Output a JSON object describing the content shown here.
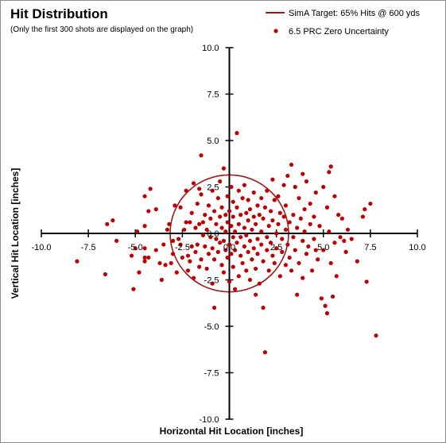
{
  "chart_data": {
    "type": "scatter",
    "title": "Hit Distribution",
    "subtitle": "(Only the first 300 shots are displayed on the graph)",
    "xlabel": "Horizontal Hit Location [inches]",
    "ylabel": "Vertical Hit Location [inches]",
    "xlim": [
      -10,
      10
    ],
    "ylim": [
      -10,
      10
    ],
    "x_ticks": [
      "-10.0",
      "-7.5",
      "-5.0",
      "-2.5",
      "0.0",
      "2.5",
      "5.0",
      "7.5",
      "10.0"
    ],
    "y_ticks": [
      "10.0",
      "7.5",
      "5.0",
      "2.5",
      "0.0",
      "-2.5",
      "-5.0",
      "-7.5",
      "-10.0"
    ],
    "grid": false,
    "legend_position": "top-right",
    "colors": {
      "series": "#c00000",
      "target": "#a01818",
      "axis": "#000000"
    },
    "target": {
      "name": "SimA Target:  65% Hits @ 600 yds",
      "type": "circle",
      "center": [
        0,
        0
      ],
      "radius": 3.15
    },
    "series": [
      {
        "name": "6.5 PRC Zero Uncertainty",
        "marker": "circle",
        "points": [
          [
            -8.1,
            -1.5
          ],
          [
            -6.6,
            -2.2
          ],
          [
            -6.5,
            0.5
          ],
          [
            -6.2,
            0.7
          ],
          [
            -6.0,
            -0.4
          ],
          [
            -5.2,
            -1.2
          ],
          [
            -5.1,
            -3.0
          ],
          [
            -5.0,
            -0.8
          ],
          [
            -4.9,
            0.1
          ],
          [
            -4.8,
            -2.1
          ],
          [
            -4.5,
            -1.3
          ],
          [
            -4.5,
            -1.5
          ],
          [
            -4.5,
            -0.8
          ],
          [
            -4.5,
            0.4
          ],
          [
            -4.5,
            2.0
          ],
          [
            -4.3,
            1.2
          ],
          [
            -4.3,
            -1.3
          ],
          [
            -4.2,
            2.4
          ],
          [
            -3.9,
            1.3
          ],
          [
            -3.9,
            -0.9
          ],
          [
            -3.7,
            -1.6
          ],
          [
            -3.6,
            -2.5
          ],
          [
            -3.5,
            -0.6
          ],
          [
            -3.3,
            0.2
          ],
          [
            -3.2,
            0.5
          ],
          [
            -3.1,
            -1.6
          ],
          [
            -3.0,
            -0.4
          ],
          [
            -2.9,
            1.5
          ],
          [
            -2.8,
            -2.1
          ],
          [
            -2.7,
            -0.3
          ],
          [
            -2.6,
            -0.6
          ],
          [
            -2.5,
            -1.3
          ],
          [
            -2.4,
            0.2
          ],
          [
            -2.3,
            0.6
          ],
          [
            -2.2,
            -1.2
          ],
          [
            -2.1,
            0.6
          ],
          [
            -2.1,
            -1.5
          ],
          [
            -2.0,
            -0.7
          ],
          [
            -2.0,
            1.1
          ],
          [
            -1.9,
            2.7
          ],
          [
            -1.9,
            -2.4
          ],
          [
            -1.8,
            0.3
          ],
          [
            -1.8,
            -1.0
          ],
          [
            -1.7,
            1.6
          ],
          [
            -1.7,
            -0.6
          ],
          [
            -1.6,
            -1.8
          ],
          [
            -1.6,
            0.5
          ],
          [
            -1.5,
            4.2
          ],
          [
            -1.5,
            -1.4
          ],
          [
            -1.5,
            2.1
          ],
          [
            -1.4,
            0.6
          ],
          [
            -1.4,
            -0.1
          ],
          [
            -1.3,
            1.0
          ],
          [
            -1.3,
            -0.7
          ],
          [
            -1.2,
            -1.9
          ],
          [
            -1.2,
            0.2
          ],
          [
            -1.1,
            1.5
          ],
          [
            -1.1,
            -1.1
          ],
          [
            -1.0,
            -0.2
          ],
          [
            -1.0,
            0.8
          ],
          [
            -0.9,
            2.3
          ],
          [
            -0.9,
            -0.8
          ],
          [
            -0.8,
            -1.4
          ],
          [
            -0.8,
            1.2
          ],
          [
            -0.8,
            -4.0
          ],
          [
            -0.7,
            0.5
          ],
          [
            -0.7,
            -0.3
          ],
          [
            -0.6,
            1.9
          ],
          [
            -0.6,
            -1.0
          ],
          [
            -0.5,
            2.8
          ],
          [
            -0.5,
            -0.5
          ],
          [
            -0.5,
            0.9
          ],
          [
            -0.4,
            -1.7
          ],
          [
            -0.4,
            0.3
          ],
          [
            -0.4,
            1.4
          ],
          [
            -0.3,
            -0.4
          ],
          [
            -0.3,
            -2.1
          ],
          [
            -0.3,
            3.5
          ],
          [
            -0.2,
            1.0
          ],
          [
            -0.2,
            -0.9
          ],
          [
            -0.2,
            0.1
          ],
          [
            -0.1,
            -1.3
          ],
          [
            -0.1,
            0.6
          ],
          [
            -0.1,
            2.0
          ],
          [
            0.0,
            -0.6
          ],
          [
            0.0,
            1.2
          ],
          [
            0.0,
            -2.6
          ],
          [
            0.1,
            0.4
          ],
          [
            0.1,
            -1.1
          ],
          [
            0.1,
            2.5
          ],
          [
            0.2,
            -0.2
          ],
          [
            0.2,
            1.7
          ],
          [
            0.2,
            -1.8
          ],
          [
            0.2,
            0.9
          ],
          [
            0.3,
            -3.0
          ],
          [
            0.3,
            0.1
          ],
          [
            0.3,
            -0.9
          ],
          [
            0.4,
            5.4
          ],
          [
            0.4,
            1.4
          ],
          [
            0.4,
            -0.5
          ],
          [
            0.5,
            2.3
          ],
          [
            0.5,
            -2.3
          ],
          [
            0.5,
            0.5
          ],
          [
            0.6,
            -1.2
          ],
          [
            0.6,
            1.0
          ],
          [
            0.6,
            -0.2
          ],
          [
            0.7,
            1.9
          ],
          [
            0.7,
            -1.6
          ],
          [
            0.8,
            0.3
          ],
          [
            0.8,
            -0.7
          ],
          [
            0.8,
            2.6
          ],
          [
            0.9,
            1.1
          ],
          [
            0.9,
            -2.0
          ],
          [
            0.9,
            -0.1
          ],
          [
            1.0,
            0.7
          ],
          [
            1.0,
            -1.0
          ],
          [
            1.0,
            1.8
          ],
          [
            1.1,
            -0.4
          ],
          [
            1.1,
            1.3
          ],
          [
            1.1,
            -2.5
          ],
          [
            1.2,
            0.2
          ],
          [
            1.2,
            -1.4
          ],
          [
            1.3,
            0.9
          ],
          [
            1.3,
            2.2
          ],
          [
            1.3,
            -0.8
          ],
          [
            1.4,
            0.5
          ],
          [
            1.4,
            -1.9
          ],
          [
            1.5,
            1.5
          ],
          [
            1.5,
            -0.3
          ],
          [
            1.5,
            -1.1
          ],
          [
            1.6,
            1.0
          ],
          [
            1.6,
            -2.7
          ],
          [
            1.7,
            0.1
          ],
          [
            1.7,
            1.9
          ],
          [
            1.7,
            -0.6
          ],
          [
            1.8,
            -1.5
          ],
          [
            1.8,
            0.8
          ],
          [
            1.8,
            -4.0
          ],
          [
            1.9,
            -6.4
          ],
          [
            1.9,
            1.4
          ],
          [
            2.0,
            -0.2
          ],
          [
            2.0,
            -0.9
          ],
          [
            2.0,
            2.3
          ],
          [
            2.1,
            0.4
          ],
          [
            2.1,
            -2.0
          ],
          [
            2.2,
            1.2
          ],
          [
            2.2,
            -0.5
          ],
          [
            2.3,
            -1.2
          ],
          [
            2.3,
            0.7
          ],
          [
            2.4,
            1.8
          ],
          [
            2.4,
            -1.6
          ],
          [
            2.5,
            0.0
          ],
          [
            2.5,
            -0.8
          ],
          [
            2.6,
            2.0
          ],
          [
            2.6,
            0.5
          ],
          [
            2.7,
            -2.3
          ],
          [
            2.7,
            1.1
          ],
          [
            2.8,
            -0.3
          ],
          [
            2.8,
            -1.0
          ],
          [
            2.9,
            0.9
          ],
          [
            2.9,
            2.6
          ],
          [
            3.0,
            -1.7
          ],
          [
            3.0,
            0.2
          ],
          [
            3.0,
            1.5
          ],
          [
            3.1,
            -0.6
          ],
          [
            3.1,
            3.1
          ],
          [
            3.2,
            -1.3
          ],
          [
            3.2,
            0.6
          ],
          [
            3.3,
            3.7
          ],
          [
            3.3,
            -2.0
          ],
          [
            3.4,
            1.0
          ],
          [
            3.4,
            -0.2
          ],
          [
            3.5,
            2.5
          ],
          [
            3.5,
            -0.9
          ],
          [
            3.6,
            -3.3
          ],
          [
            3.6,
            0.3
          ],
          [
            3.7,
            1.9
          ],
          [
            3.7,
            -1.6
          ],
          [
            3.8,
            0.8
          ],
          [
            3.9,
            -0.4
          ],
          [
            3.9,
            -2.4
          ],
          [
            4.0,
            1.3
          ],
          [
            4.0,
            0.1
          ],
          [
            4.1,
            -1.1
          ],
          [
            4.1,
            2.8
          ],
          [
            4.2,
            -0.7
          ],
          [
            4.3,
            0.5
          ],
          [
            4.3,
            1.6
          ],
          [
            4.4,
            -2.0
          ],
          [
            4.5,
            0.9
          ],
          [
            4.5,
            -0.3
          ],
          [
            4.6,
            2.2
          ],
          [
            4.7,
            -1.4
          ],
          [
            4.8,
            0.4
          ],
          [
            4.9,
            -3.5
          ],
          [
            5.0,
            -0.9
          ],
          [
            5.0,
            2.5
          ],
          [
            5.1,
            -3.9
          ],
          [
            5.2,
            -4.3
          ],
          [
            5.2,
            1.4
          ],
          [
            5.3,
            0.1
          ],
          [
            5.3,
            3.3
          ],
          [
            5.4,
            -1.6
          ],
          [
            5.5,
            -3.4
          ],
          [
            5.6,
            2.0
          ],
          [
            5.6,
            -0.5
          ],
          [
            5.7,
            -2.3
          ],
          [
            5.8,
            1.0
          ],
          [
            5.9,
            -0.2
          ],
          [
            6.0,
            0.8
          ],
          [
            6.1,
            -0.4
          ],
          [
            6.2,
            -1.0
          ],
          [
            6.3,
            0.2
          ],
          [
            6.5,
            -0.3
          ],
          [
            6.8,
            -1.5
          ],
          [
            7.1,
            0.9
          ],
          [
            7.2,
            1.3
          ],
          [
            7.3,
            -2.6
          ],
          [
            7.5,
            1.6
          ],
          [
            7.8,
            -5.5
          ],
          [
            -3.0,
            -1.1
          ],
          [
            -2.6,
            1.4
          ],
          [
            -2.2,
            -2.0
          ],
          [
            -1.6,
            2.4
          ],
          [
            -0.9,
            -2.7
          ],
          [
            2.3,
            2.9
          ],
          [
            3.9,
            3.2
          ],
          [
            4.6,
            -0.9
          ],
          [
            5.4,
            3.6
          ],
          [
            1.4,
            -3.3
          ],
          [
            -3.4,
            -1.7
          ],
          [
            -2.3,
            2.3
          ]
        ]
      }
    ]
  }
}
